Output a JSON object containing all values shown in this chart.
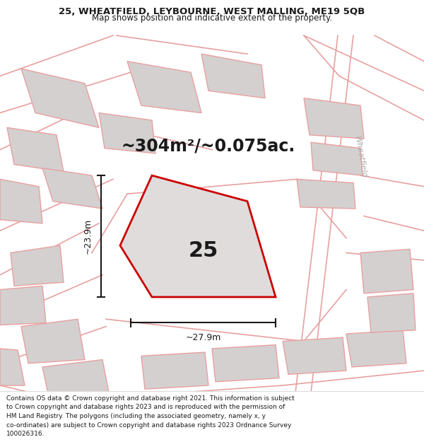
{
  "title_line1": "25, WHEATFIELD, LEYBOURNE, WEST MALLING, ME19 5QB",
  "title_line2": "Map shows position and indicative extent of the property.",
  "area_text": "~304m²/~0.075ac.",
  "plot_number": "25",
  "dim_vertical": "~23.9m",
  "dim_horizontal": "~27.9m",
  "street_label": "Wheatfield",
  "footer_lines": [
    "Contains OS data © Crown copyright and database right 2021. This information is subject",
    "to Crown copyright and database rights 2023 and is reproduced with the permission of",
    "HM Land Registry. The polygons (including the associated geometry, namely x, y",
    "co-ordinates) are subject to Crown copyright and database rights 2023 Ordnance Survey",
    "100026316."
  ],
  "map_bg_color": "#e8e4e4",
  "building_fill": "#d4d0d0",
  "outline_color": "#e8a0a0",
  "highlight_color": "#cc0000",
  "text_color": "#1a1a1a",
  "footer_bg": "#ffffff",
  "title_bg": "#ffffff"
}
